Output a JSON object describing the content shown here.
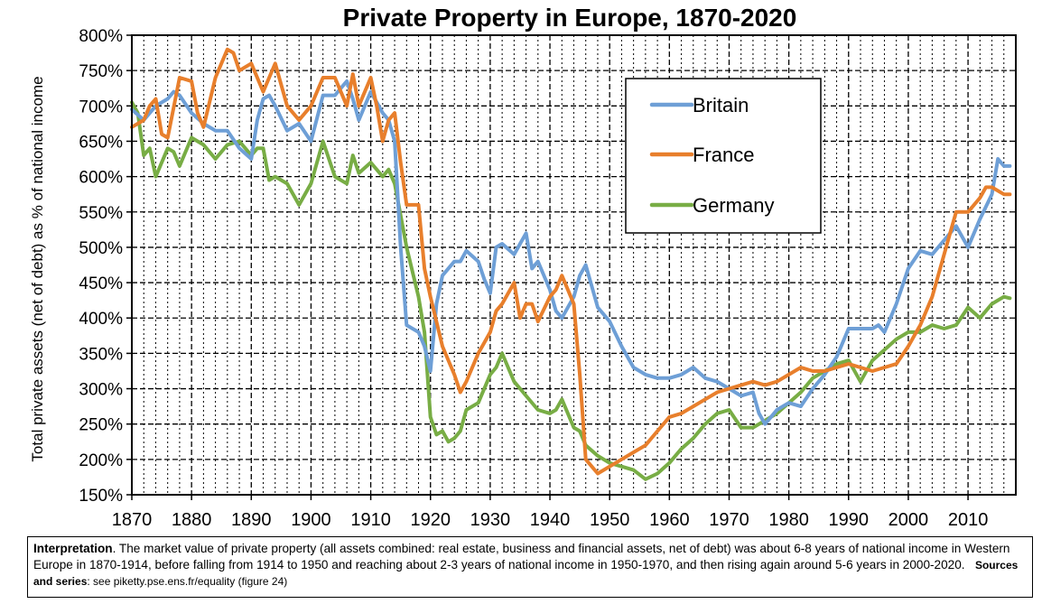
{
  "chart_data": {
    "type": "line",
    "title": "Private Property in Europe, 1870-2020",
    "ylabel": "Total private assets (net of debt) as % of national income",
    "xlabel": "",
    "xlim": [
      1870,
      2018
    ],
    "ylim": [
      150,
      800
    ],
    "xticks": [
      1870,
      1880,
      1890,
      1900,
      1910,
      1920,
      1930,
      1940,
      1950,
      1960,
      1970,
      1980,
      1990,
      2000,
      2010
    ],
    "yticks": [
      150,
      200,
      250,
      300,
      350,
      400,
      450,
      500,
      550,
      600,
      650,
      700,
      750,
      800
    ],
    "ytick_labels": [
      "150%",
      "200%",
      "250%",
      "300%",
      "350%",
      "400%",
      "450%",
      "500%",
      "550%",
      "600%",
      "650%",
      "700%",
      "750%",
      "800%"
    ],
    "xtick_labels": [
      "1870",
      "1880",
      "1890",
      "1900",
      "1910",
      "1920",
      "1930",
      "1940",
      "1950",
      "1960",
      "1970",
      "1980",
      "1990",
      "2000",
      "2010"
    ],
    "grid": true,
    "legend_position": "top-right",
    "series": [
      {
        "name": "Britain",
        "color": "#6e9fd6",
        "x": [
          1870,
          1872,
          1874,
          1876,
          1877,
          1878,
          1880,
          1882,
          1884,
          1886,
          1888,
          1890,
          1891,
          1892,
          1893,
          1894,
          1896,
          1898,
          1900,
          1902,
          1904,
          1906,
          1907,
          1908,
          1910,
          1912,
          1913,
          1914,
          1915,
          1916,
          1918,
          1919,
          1920,
          1921,
          1922,
          1924,
          1925,
          1926,
          1928,
          1929,
          1930,
          1931,
          1932,
          1934,
          1935,
          1936,
          1937,
          1938,
          1940,
          1941,
          1942,
          1944,
          1945,
          1946,
          1948,
          1950,
          1952,
          1954,
          1956,
          1958,
          1960,
          1962,
          1964,
          1966,
          1968,
          1970,
          1972,
          1974,
          1975,
          1976,
          1977,
          1978,
          1980,
          1982,
          1984,
          1986,
          1988,
          1990,
          1992,
          1994,
          1995,
          1996,
          1998,
          2000,
          2002,
          2004,
          2006,
          2007,
          2008,
          2010,
          2012,
          2014,
          2015,
          2016,
          2017
        ],
        "y": [
          695,
          680,
          700,
          710,
          720,
          715,
          690,
          675,
          665,
          665,
          640,
          625,
          680,
          710,
          715,
          700,
          665,
          675,
          650,
          715,
          715,
          735,
          710,
          680,
          720,
          690,
          680,
          650,
          500,
          390,
          380,
          360,
          325,
          420,
          460,
          480,
          480,
          495,
          480,
          455,
          435,
          500,
          505,
          490,
          505,
          520,
          470,
          480,
          440,
          410,
          400,
          430,
          460,
          475,
          415,
          395,
          360,
          330,
          320,
          315,
          315,
          320,
          330,
          315,
          310,
          300,
          290,
          295,
          265,
          250,
          260,
          270,
          280,
          275,
          300,
          320,
          345,
          385,
          385,
          385,
          390,
          380,
          420,
          470,
          495,
          490,
          510,
          520,
          530,
          500,
          540,
          575,
          625,
          615,
          615
        ]
      },
      {
        "name": "France",
        "color": "#e87f2c",
        "x": [
          1870,
          1872,
          1873,
          1874,
          1875,
          1876,
          1878,
          1880,
          1881,
          1882,
          1884,
          1885,
          1886,
          1887,
          1888,
          1890,
          1892,
          1893,
          1894,
          1896,
          1898,
          1900,
          1902,
          1904,
          1906,
          1907,
          1908,
          1910,
          1911,
          1912,
          1913,
          1914,
          1915,
          1916,
          1918,
          1919,
          1920,
          1922,
          1924,
          1925,
          1926,
          1928,
          1930,
          1931,
          1932,
          1934,
          1935,
          1936,
          1937,
          1938,
          1940,
          1941,
          1942,
          1944,
          1945,
          1946,
          1948,
          1950,
          1952,
          1954,
          1956,
          1958,
          1960,
          1962,
          1964,
          1966,
          1968,
          1970,
          1972,
          1974,
          1976,
          1978,
          1980,
          1982,
          1984,
          1986,
          1988,
          1990,
          1992,
          1994,
          1996,
          1998,
          2000,
          2002,
          2004,
          2006,
          2007,
          2008,
          2010,
          2012,
          2013,
          2014,
          2016,
          2017
        ],
        "y": [
          670,
          680,
          700,
          710,
          660,
          655,
          740,
          735,
          690,
          670,
          740,
          760,
          780,
          775,
          750,
          760,
          720,
          740,
          760,
          700,
          680,
          700,
          740,
          740,
          700,
          745,
          700,
          740,
          700,
          650,
          680,
          690,
          620,
          560,
          560,
          470,
          430,
          360,
          320,
          295,
          310,
          350,
          380,
          410,
          420,
          450,
          400,
          420,
          420,
          395,
          430,
          440,
          460,
          420,
          320,
          200,
          180,
          190,
          200,
          210,
          220,
          240,
          260,
          265,
          275,
          285,
          295,
          300,
          305,
          310,
          305,
          310,
          320,
          330,
          325,
          325,
          330,
          335,
          330,
          325,
          330,
          335,
          360,
          390,
          430,
          490,
          520,
          550,
          550,
          570,
          585,
          585,
          575,
          575
        ]
      },
      {
        "name": "Germany",
        "color": "#78ad45",
        "x": [
          1870,
          1871,
          1872,
          1873,
          1874,
          1876,
          1877,
          1878,
          1880,
          1882,
          1884,
          1886,
          1888,
          1890,
          1891,
          1892,
          1893,
          1894,
          1896,
          1898,
          1900,
          1902,
          1904,
          1906,
          1907,
          1908,
          1910,
          1912,
          1913,
          1914,
          1916,
          1918,
          1919,
          1920,
          1921,
          1922,
          1923,
          1924,
          1925,
          1926,
          1928,
          1930,
          1931,
          1932,
          1934,
          1935,
          1936,
          1938,
          1940,
          1941,
          1942,
          1944,
          1945,
          1946,
          1948,
          1950,
          1952,
          1954,
          1956,
          1958,
          1960,
          1962,
          1964,
          1966,
          1968,
          1970,
          1972,
          1974,
          1976,
          1978,
          1980,
          1982,
          1984,
          1986,
          1988,
          1990,
          1992,
          1994,
          1996,
          1998,
          2000,
          2002,
          2004,
          2006,
          2008,
          2010,
          2012,
          2014,
          2016,
          2017
        ],
        "y": [
          705,
          690,
          630,
          640,
          600,
          640,
          635,
          615,
          655,
          645,
          625,
          645,
          650,
          630,
          640,
          640,
          595,
          600,
          590,
          560,
          590,
          650,
          600,
          590,
          630,
          605,
          620,
          600,
          610,
          590,
          500,
          430,
          380,
          260,
          235,
          240,
          225,
          230,
          240,
          270,
          280,
          320,
          330,
          350,
          310,
          300,
          290,
          270,
          265,
          270,
          285,
          245,
          240,
          220,
          205,
          195,
          190,
          185,
          172,
          180,
          195,
          215,
          230,
          250,
          265,
          270,
          245,
          245,
          255,
          265,
          280,
          295,
          315,
          325,
          335,
          340,
          310,
          340,
          355,
          370,
          380,
          380,
          390,
          385,
          390,
          415,
          400,
          420,
          430,
          428
        ]
      }
    ]
  },
  "note": {
    "interp_label": "Interpretation",
    "interp_text": ". The market value of private property (all assets combined: real estate, business and financial assets, net of debt) was about 6-8 years of national income in Western Europe in 1870-1914, before falling from 1914 to 1950 and reaching about 2-3 years of national income in 1950-1970, and then rising again around 5-6 years in 2000-2020.",
    "sources_label": "Sources and series",
    "sources_text": ": see piketty.pse.ens.fr/equality (figure 24)"
  }
}
